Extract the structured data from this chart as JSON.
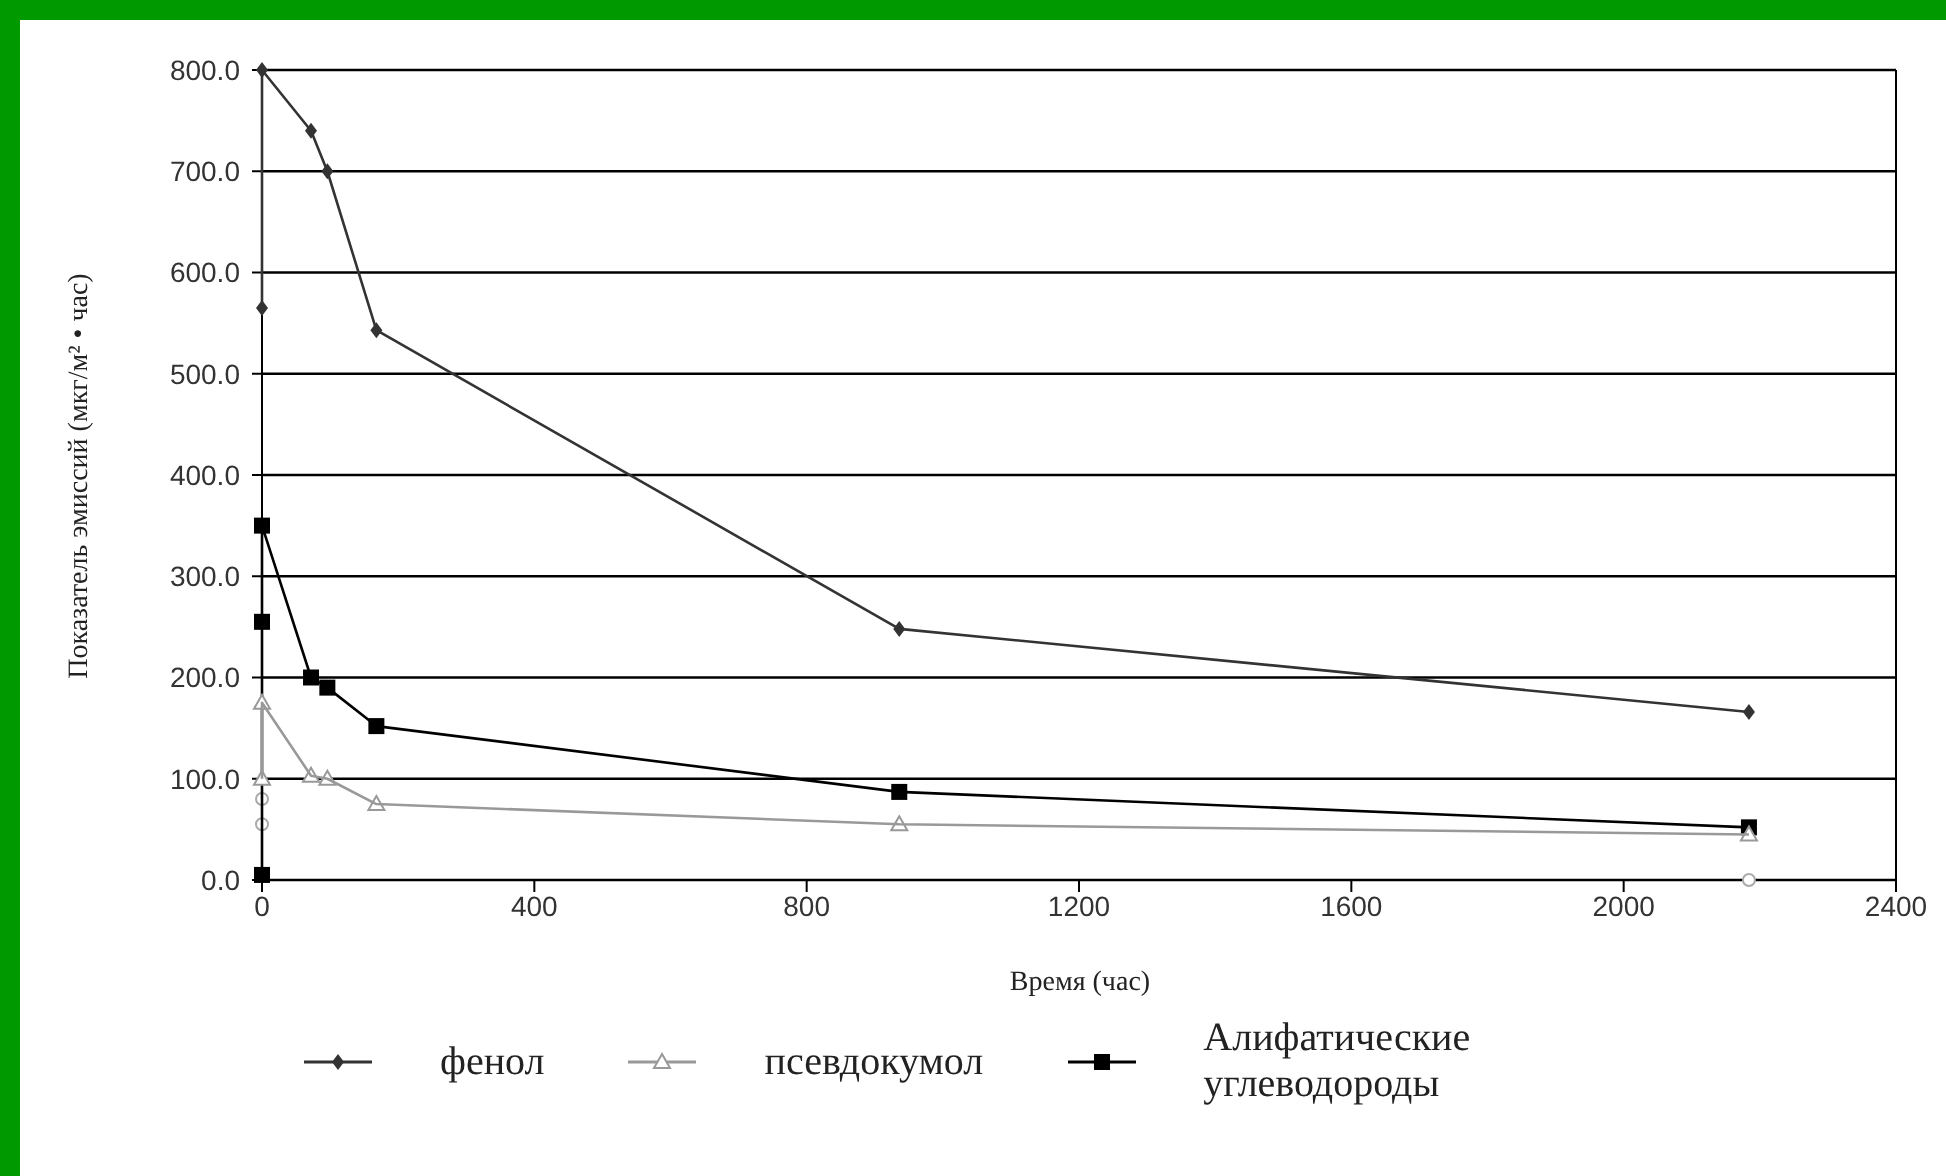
{
  "chart_data": {
    "type": "line",
    "xlabel": "Время (час)",
    "ylabel": "Показатель эмиссий (мкг/м² • час)",
    "xlim": [
      0,
      2400
    ],
    "xticks": [
      0,
      400,
      800,
      1200,
      1600,
      2000,
      2400
    ],
    "ylim": [
      0,
      800
    ],
    "yticks": [
      {
        "value": 0,
        "label": "0.0"
      },
      {
        "value": 100,
        "label": "100.0"
      },
      {
        "value": 200,
        "label": "200.0"
      },
      {
        "value": 300,
        "label": "300.0"
      },
      {
        "value": 400,
        "label": "400.0"
      },
      {
        "value": 500,
        "label": "500.0"
      },
      {
        "value": 600,
        "label": "600.0"
      },
      {
        "value": 700,
        "label": "700.0"
      },
      {
        "value": 800,
        "label": "800.0"
      }
    ],
    "grid": "y",
    "legend": "bottom",
    "line_style": "solid",
    "series": [
      {
        "name": "фенол",
        "color": "#333333",
        "marker": "diamond",
        "x": [
          0,
          0,
          72,
          96,
          168,
          936,
          2184
        ],
        "values": [
          565,
          800,
          740,
          700,
          543,
          248,
          166
        ]
      },
      {
        "name": "псевдокумол",
        "color": "#999999",
        "marker": "triangle",
        "x": [
          0,
          0,
          72,
          96,
          168,
          936,
          2184
        ],
        "values": [
          100,
          175,
          103,
          100,
          75,
          55,
          45
        ]
      },
      {
        "name": "Алифатические углеводороды",
        "color": "#000000",
        "marker": "square",
        "x": [
          0,
          0,
          0,
          72,
          96,
          168,
          936,
          2184
        ],
        "values": [
          5,
          255,
          350,
          200,
          190,
          152,
          87,
          52
        ]
      },
      {
        "type": "scatter",
        "color": "#aaaaaa",
        "marker": "circle",
        "x": [
          0,
          0,
          2184
        ],
        "values": [
          55,
          80,
          0
        ]
      }
    ]
  }
}
